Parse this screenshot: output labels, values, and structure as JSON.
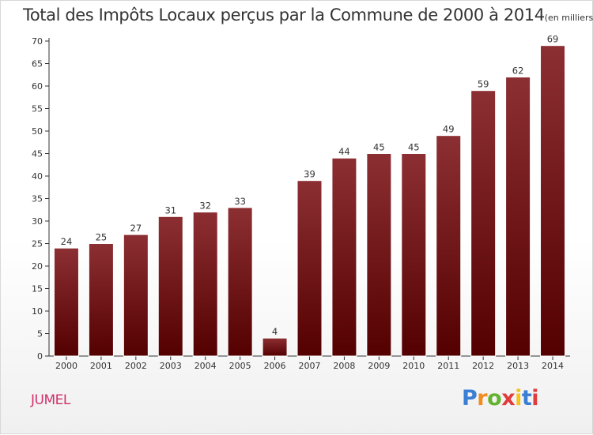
{
  "title": "Total des Impôts Locaux perçus par la Commune de 2000 à 2014",
  "unit_note": "(en milliers d'€)",
  "commune": "JUMEL",
  "logo": {
    "text": "Proxiti",
    "letter_colors": [
      "#3a7fd5",
      "#f28c1e",
      "#63b32e",
      "#e23b3b",
      "#f6c21a",
      "#3a7fd5",
      "#e23b3b"
    ]
  },
  "colors": {
    "bar_top": "#8c2f33",
    "bar_bottom": "#540000",
    "commune": "#d0306a",
    "axis": "#333333"
  },
  "chart_data": {
    "type": "bar",
    "title": "Total des Impôts Locaux perçus par la Commune de 2000 à 2014",
    "xlabel": "",
    "ylabel": "",
    "categories": [
      "2000",
      "2001",
      "2002",
      "2003",
      "2004",
      "2005",
      "2006",
      "2007",
      "2008",
      "2009",
      "2010",
      "2011",
      "2012",
      "2013",
      "2014"
    ],
    "values": [
      24,
      25,
      27,
      31,
      32,
      33,
      4,
      39,
      44,
      45,
      45,
      49,
      59,
      62,
      69
    ],
    "ylim": [
      0,
      70
    ],
    "yticks": [
      0,
      5,
      10,
      15,
      20,
      25,
      30,
      35,
      40,
      45,
      50,
      55,
      60,
      65,
      70
    ],
    "grid": false,
    "data_labels": true
  }
}
